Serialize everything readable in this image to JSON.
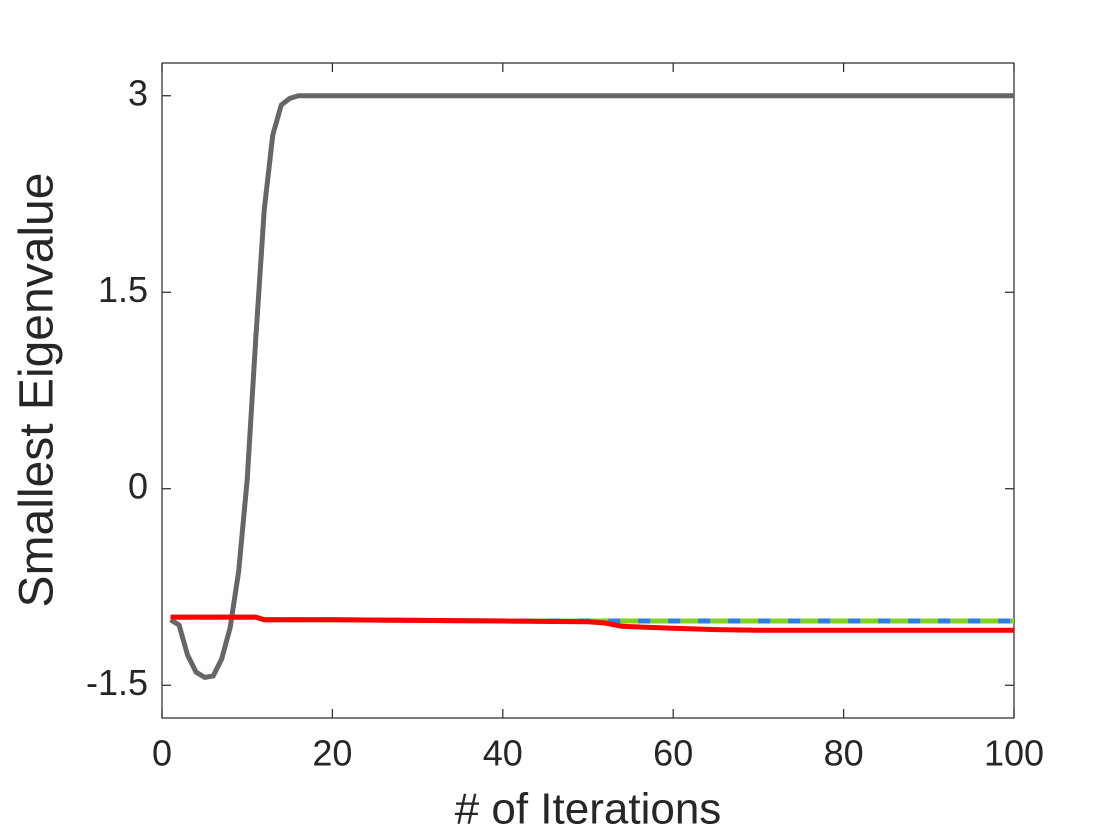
{
  "chart_data": {
    "type": "line",
    "x_label": "# of Iterations",
    "y_label": "Smallest Eigenvalue",
    "x": [
      1,
      2,
      3,
      4,
      5,
      6,
      7,
      8,
      9,
      10,
      11,
      12,
      13,
      14,
      15,
      16,
      20,
      30,
      40,
      50,
      52,
      54,
      56,
      58,
      60,
      65,
      70,
      80,
      90,
      100
    ],
    "series": [
      {
        "color": "#666666",
        "values": [
          -1.0,
          -1.04,
          -1.27,
          -1.4,
          -1.44,
          -1.43,
          -1.3,
          -1.06,
          -0.63,
          0.07,
          1.14,
          2.13,
          2.7,
          2.93,
          2.98,
          3.0,
          3.0,
          3.0,
          3.0,
          3.0,
          3.0,
          3.0,
          3.0,
          3.0,
          3.0,
          3.0,
          3.0,
          3.0,
          3.0,
          3.0
        ]
      },
      {
        "color": "#2b7fe0",
        "values": [
          -0.98,
          -0.98,
          -0.98,
          -0.98,
          -0.98,
          -0.98,
          -0.98,
          -0.98,
          -0.98,
          -0.98,
          -0.98,
          -1.0,
          -1.0,
          -1.0,
          -1.0,
          -1.0,
          -1.0,
          -1.005,
          -1.01,
          -1.01,
          -1.01,
          -1.01,
          -1.01,
          -1.01,
          -1.01,
          -1.01,
          -1.01,
          -1.01,
          -1.01,
          -1.01
        ]
      },
      {
        "color": "#7ed321",
        "dashed": true,
        "values": [
          -0.98,
          -0.98,
          -0.98,
          -0.98,
          -0.98,
          -0.98,
          -0.98,
          -0.98,
          -0.98,
          -0.98,
          -0.98,
          -1.0,
          -1.0,
          -1.0,
          -1.0,
          -1.0,
          -1.0,
          -1.005,
          -1.01,
          -1.01,
          -1.01,
          -1.01,
          -1.01,
          -1.01,
          -1.01,
          -1.01,
          -1.01,
          -1.01,
          -1.01,
          -1.01
        ]
      },
      {
        "color": "#ff0000",
        "values": [
          -0.98,
          -0.98,
          -0.98,
          -0.98,
          -0.98,
          -0.98,
          -0.98,
          -0.98,
          -0.98,
          -0.98,
          -0.98,
          -1.0,
          -1.0,
          -1.0,
          -1.0,
          -1.0,
          -1.0,
          -1.005,
          -1.01,
          -1.015,
          -1.025,
          -1.05,
          -1.055,
          -1.06,
          -1.065,
          -1.075,
          -1.08,
          -1.08,
          -1.08,
          -1.08
        ]
      }
    ],
    "xlim": [
      0,
      100
    ],
    "xticks": [
      0,
      20,
      40,
      60,
      80,
      100
    ],
    "ylim": [
      -1.75,
      3.25
    ],
    "yticks": [
      -1.5,
      0,
      1.5,
      3
    ],
    "grid": false
  }
}
